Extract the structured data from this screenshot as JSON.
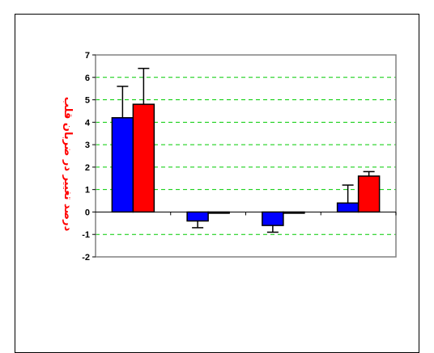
{
  "chart_data": {
    "type": "bar",
    "title": "",
    "xlabel": "",
    "ylabel": "درصد تغییر در ضربان قلب",
    "ylim": [
      -2,
      7
    ],
    "yticks": [
      -2,
      -1,
      0,
      1,
      2,
      3,
      4,
      5,
      6,
      7
    ],
    "grid": true,
    "categories": [
      "",
      "",
      "",
      ""
    ],
    "series": [
      {
        "values": [
          4.2,
          -0.4,
          -0.6,
          0.4
        ],
        "errors": [
          1.4,
          0.3,
          0.3,
          0.8
        ],
        "color": "#0000ff"
      },
      {
        "values": [
          4.8,
          0.0,
          0.0,
          1.6
        ],
        "errors": [
          1.6,
          0.0,
          0.0,
          0.2
        ],
        "color": "#ff0000"
      }
    ],
    "colors": {
      "grid": "#00cc00",
      "axis": "#808080",
      "ylabel": "#ff0000"
    }
  }
}
